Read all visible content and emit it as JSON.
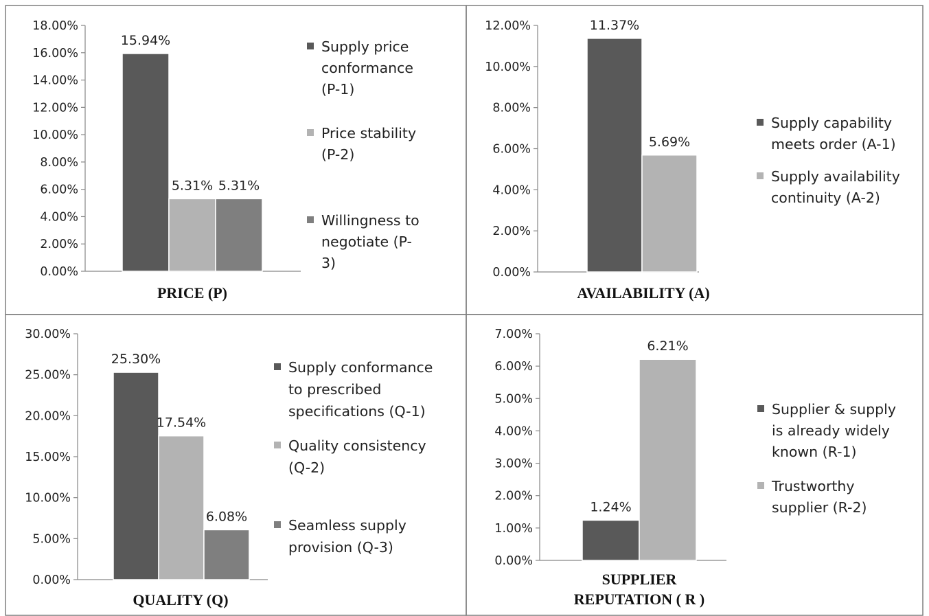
{
  "figure": {
    "colors": {
      "dark": "#595959",
      "light": "#b3b3b3",
      "medium": "#7f7f7f"
    }
  },
  "chart_data": [
    {
      "type": "bar",
      "xlabel": "PRICE (P)",
      "ylim": [
        0,
        18
      ],
      "yticks": [
        "0.00%",
        "2.00%",
        "4.00%",
        "6.00%",
        "8.00%",
        "10.00%",
        "12.00%",
        "14.00%",
        "16.00%",
        "18.00%"
      ],
      "legend_position": "right",
      "series": [
        {
          "name": "Supply price conformance (P-1)",
          "value": 15.94,
          "label": "15.94%",
          "color": "#595959",
          "legend_lines": [
            "  Supply price",
            "conformance",
            "(P-1)"
          ]
        },
        {
          "name": "Price stability (P-2)",
          "value": 5.31,
          "label": "5.31%",
          "color": "#b3b3b3",
          "legend_lines": [
            "Price stability",
            "(P-2)"
          ]
        },
        {
          "name": "Willingness to negotiate (P-3)",
          "value": 5.31,
          "label": "5.31%",
          "color": "#7f7f7f",
          "legend_lines": [
            "Willingness to",
            "negotiate (P-",
            "3)"
          ]
        }
      ]
    },
    {
      "type": "bar",
      "xlabel": "AVAILABILITY (A)",
      "ylim": [
        0,
        12
      ],
      "yticks": [
        "0.00%",
        "2.00%",
        "4.00%",
        "6.00%",
        "8.00%",
        "10.00%",
        "12.00%"
      ],
      "legend_position": "right",
      "series": [
        {
          "name": "Supply capability meets order (A-1)",
          "value": 11.37,
          "label": "11.37%",
          "color": "#595959",
          "legend_lines": [
            "Supply capability",
            "meets order (A-1)"
          ]
        },
        {
          "name": "Supply availability continuity (A-2)",
          "value": 5.69,
          "label": "5.69%",
          "color": "#b3b3b3",
          "legend_lines": [
            "Supply availability",
            "continuity (A-2)"
          ]
        }
      ]
    },
    {
      "type": "bar",
      "xlabel": "QUALITY (Q)",
      "ylim": [
        0,
        30
      ],
      "yticks": [
        "0.00%",
        "5.00%",
        "10.00%",
        "15.00%",
        "20.00%",
        "25.00%",
        "30.00%"
      ],
      "legend_position": "right",
      "series": [
        {
          "name": "Supply conformance to prescribed specifications (Q-1)",
          "value": 25.3,
          "label": "25.30%",
          "color": "#595959",
          "legend_lines": [
            "Supply conformance",
            "to prescribed",
            "specifications (Q-1)"
          ]
        },
        {
          "name": "Quality consistency (Q-2)",
          "value": 17.54,
          "label": "17.54%",
          "color": "#b3b3b3",
          "legend_lines": [
            "Quality consistency",
            "(Q-2)"
          ]
        },
        {
          "name": "Seamless supply provision (Q-3)",
          "value": 6.08,
          "label": "6.08%",
          "color": "#7f7f7f",
          "legend_lines": [
            "Seamless supply",
            "provision (Q-3)"
          ]
        }
      ]
    },
    {
      "type": "bar",
      "xlabel": "SUPPLIER REPUTATION ( R )",
      "xlabel_lines": [
        "SUPPLIER",
        "REPUTATION ( R )"
      ],
      "ylim": [
        0,
        7
      ],
      "yticks": [
        "0.00%",
        "1.00%",
        "2.00%",
        "3.00%",
        "4.00%",
        "5.00%",
        "6.00%",
        "7.00%"
      ],
      "legend_position": "right",
      "series": [
        {
          "name": "Supplier & supply is already widely known (R-1)",
          "value": 1.24,
          "label": "1.24%",
          "color": "#595959",
          "legend_lines": [
            "Supplier & supply",
            "is already widely",
            "known (R-1)"
          ]
        },
        {
          "name": "Trustworthy supplier (R-2)",
          "value": 6.21,
          "label": "6.21%",
          "color": "#b3b3b3",
          "legend_lines": [
            "Trustworthy",
            "supplier (R-2)"
          ]
        }
      ]
    }
  ]
}
